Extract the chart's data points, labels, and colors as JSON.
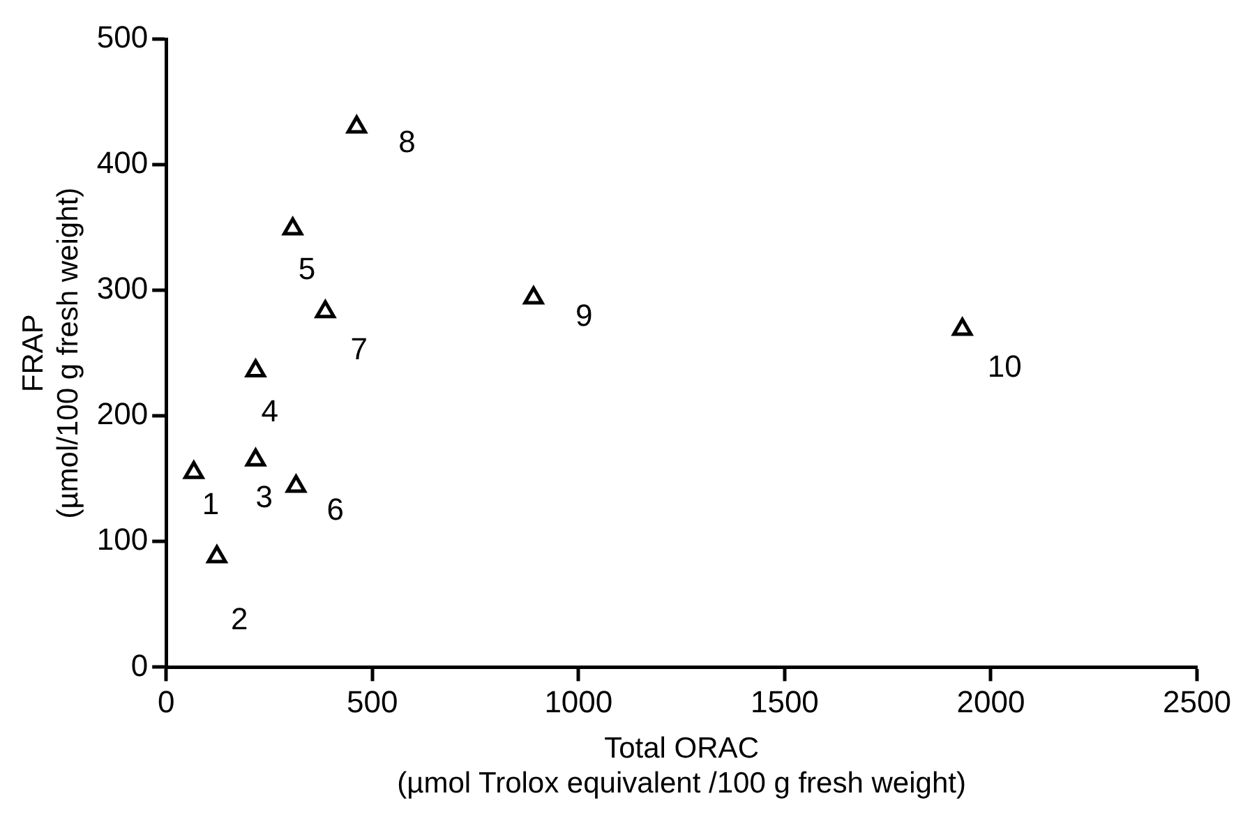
{
  "chart_data": {
    "type": "scatter",
    "xlabel": "Total ORAC\n(µmol Trolox equivalent /100 g fresh weight)",
    "ylabel": "FRAP\n(µmol/100 g fresh weight)",
    "series": [
      {
        "color": "#000000",
        "x": [
          67,
          123,
          217,
          217,
          307,
          315,
          386,
          462,
          891,
          1931
        ],
        "values": [
          155,
          88,
          165,
          236,
          349,
          144,
          283,
          430,
          294,
          269
        ]
      }
    ],
    "xlim": [
      0,
      2500
    ],
    "xticks": [
      0,
      500,
      1000,
      1500,
      2000,
      2500
    ],
    "ylim": [
      0,
      500
    ],
    "yticks": [
      0,
      100,
      200,
      300,
      400,
      500
    ],
    "marker": "triangle",
    "annotations": [
      {
        "text": "1",
        "x": 67,
        "y": 155
      },
      {
        "text": "2",
        "x": 123,
        "y": 88
      },
      {
        "text": "3",
        "x": 217,
        "y": 165
      },
      {
        "text": "4",
        "x": 217,
        "y": 236
      },
      {
        "text": "5",
        "x": 307,
        "y": 349
      },
      {
        "text": "6",
        "x": 315,
        "y": 144
      },
      {
        "text": "7",
        "x": 386,
        "y": 283
      },
      {
        "text": "8",
        "x": 462,
        "y": 430
      },
      {
        "text": "9",
        "x": 891,
        "y": 294
      },
      {
        "text": "10",
        "x": 1931,
        "y": 269
      }
    ]
  }
}
